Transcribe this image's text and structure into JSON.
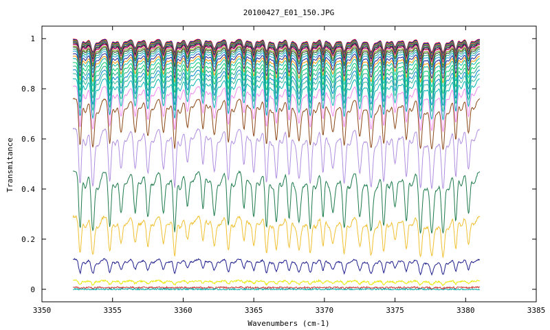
{
  "chart_data": {
    "type": "line",
    "title": "20100427_E01_150.JPG",
    "xlabel": "Wavenumbers (cm-1)",
    "ylabel": "Transmitance",
    "xlim": [
      3350,
      3385
    ],
    "ylim": [
      -0.05,
      1.05
    ],
    "xticks": [
      3350,
      3355,
      3360,
      3365,
      3370,
      3375,
      3380,
      3385
    ],
    "yticks": [
      0,
      0.2,
      0.4,
      0.6,
      0.8,
      1
    ],
    "ytick_labels": [
      "0",
      "0.2",
      "0.4",
      "0.6",
      "0.8",
      "1"
    ],
    "grid": false,
    "legend": "none",
    "x_range": [
      3352.2,
      3381.0
    ],
    "absorption_lines": [
      3352.7,
      3353.6,
      3354.8,
      3355.6,
      3356.6,
      3357.5,
      3358.6,
      3359.4,
      3360.3,
      3361.4,
      3362.2,
      3363.2,
      3364.3,
      3365.0,
      3365.9,
      3366.6,
      3367.5,
      3368.2,
      3369.0,
      3369.9,
      3370.6,
      3371.4,
      3372.5,
      3373.3,
      3374.2,
      3375.0,
      3375.8,
      3376.8,
      3377.6,
      3378.4,
      3379.3,
      3380.2
    ],
    "series": [
      {
        "baseline": 0.998,
        "color": "#ff0000"
      },
      {
        "baseline": 0.996,
        "color": "#0000ff"
      },
      {
        "baseline": 0.994,
        "color": "#00aa00"
      },
      {
        "baseline": 0.992,
        "color": "#ff8800"
      },
      {
        "baseline": 0.99,
        "color": "#aa00aa"
      },
      {
        "baseline": 0.988,
        "color": "#008888"
      },
      {
        "baseline": 0.985,
        "color": "#888800"
      },
      {
        "baseline": 0.982,
        "color": "#000088"
      },
      {
        "baseline": 0.978,
        "color": "#880000"
      },
      {
        "baseline": 0.975,
        "color": "#ff66cc"
      },
      {
        "baseline": 0.97,
        "color": "#66aa00"
      },
      {
        "baseline": 0.965,
        "color": "#333333"
      },
      {
        "baseline": 0.958,
        "color": "#1aa37a"
      },
      {
        "baseline": 0.95,
        "color": "#2299dd"
      },
      {
        "baseline": 0.94,
        "color": "#1a1a8c"
      },
      {
        "baseline": 0.93,
        "color": "#ee9900"
      },
      {
        "baseline": 0.92,
        "color": "#00bbaa"
      },
      {
        "baseline": 0.905,
        "color": "#00cc66"
      },
      {
        "baseline": 0.89,
        "color": "#22aa88"
      },
      {
        "baseline": 0.875,
        "color": "#0088cc"
      },
      {
        "baseline": 0.86,
        "color": "#33bb99"
      },
      {
        "baseline": 0.84,
        "color": "#00b3b3"
      },
      {
        "baseline": 0.81,
        "color": "#ee88ee"
      },
      {
        "baseline": 0.76,
        "color": "#8b4513"
      },
      {
        "baseline": 0.64,
        "color": "#b08ee0"
      },
      {
        "baseline": 0.47,
        "color": "#1b7a4a"
      },
      {
        "baseline": 0.29,
        "color": "#f0c030"
      },
      {
        "baseline": 0.12,
        "color": "#1c1c8c"
      },
      {
        "baseline": 0.035,
        "color": "#e8e800"
      },
      {
        "baseline": 0.008,
        "color": "#cc3333"
      },
      {
        "baseline": 0.0,
        "color": "#00aaaa"
      }
    ]
  }
}
